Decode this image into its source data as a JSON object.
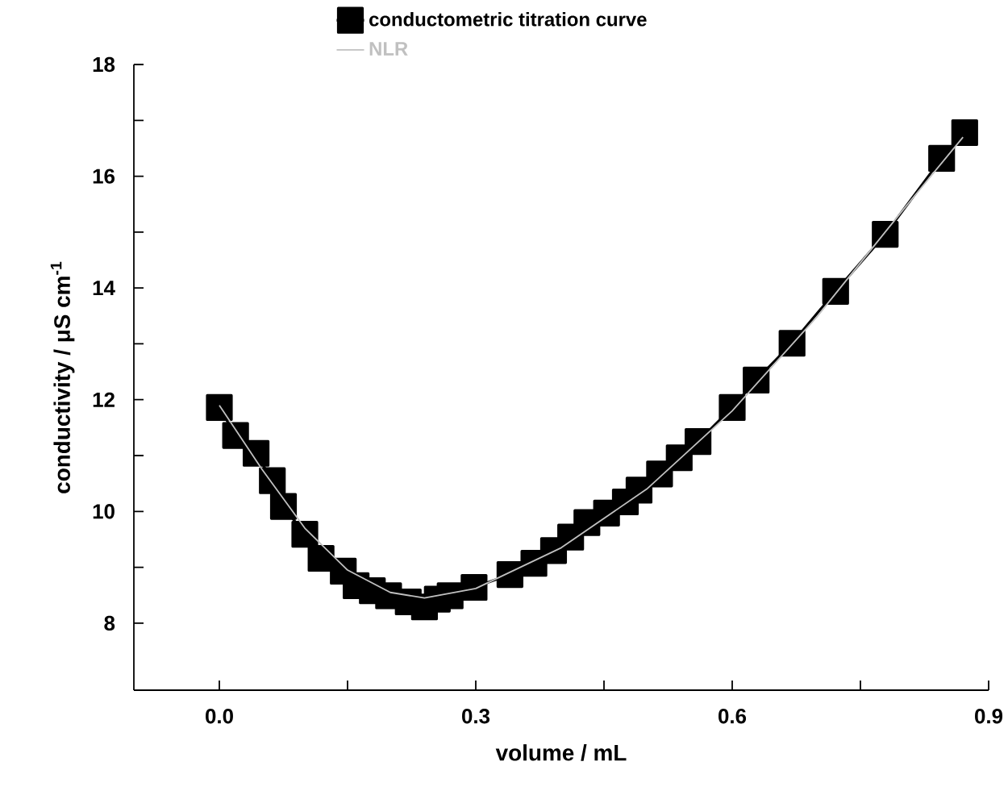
{
  "chart_data": {
    "type": "line",
    "xlabel": "volume / mL",
    "ylabel": "conductivity / μS cm$^{-1}$",
    "xlim": [
      -0.1,
      0.9
    ],
    "ylim": [
      6.8,
      18
    ],
    "xticks": [
      {
        "value": 0,
        "label": "0.0"
      },
      {
        "value": 0.15,
        "label": null
      },
      {
        "value": 0.3,
        "label": "0.3"
      },
      {
        "value": 0.45,
        "label": null
      },
      {
        "value": 0.6,
        "label": "0.6"
      },
      {
        "value": 0.75,
        "label": null
      },
      {
        "value": 0.9,
        "label": "0.9"
      }
    ],
    "yticks": [
      8,
      {
        "value": 9,
        "label": null
      },
      10,
      {
        "value": 11,
        "label": null
      },
      12,
      {
        "value": 13,
        "label": null
      },
      14,
      {
        "value": 15,
        "label": null
      },
      16,
      {
        "value": 17,
        "label": null
      },
      18
    ],
    "legend": "top",
    "series": [
      {
        "name": "conductometric titration curve",
        "color": "#000000",
        "marker": "square",
        "x": [
          0.0,
          0.019,
          0.043,
          0.062,
          0.075,
          0.1,
          0.119,
          0.145,
          0.16,
          0.179,
          0.198,
          0.221,
          0.24,
          0.255,
          0.27,
          0.298,
          0.34,
          0.368,
          0.391,
          0.411,
          0.43,
          0.453,
          0.475,
          0.491,
          0.515,
          0.538,
          0.56,
          0.6,
          0.628,
          0.67,
          0.721,
          0.779,
          0.845,
          0.872
        ],
        "values": [
          11.86,
          11.36,
          11.04,
          10.55,
          10.09,
          9.59,
          9.16,
          8.93,
          8.67,
          8.58,
          8.49,
          8.38,
          8.29,
          8.43,
          8.49,
          8.64,
          8.87,
          9.07,
          9.3,
          9.54,
          9.8,
          9.97,
          10.17,
          10.38,
          10.67,
          10.96,
          11.25,
          11.86,
          12.35,
          13.01,
          13.94,
          14.96,
          16.32,
          16.78
        ]
      },
      {
        "name": "NLR",
        "color": "#c0c0c0",
        "marker": "none",
        "x": [
          0.0,
          0.05,
          0.1,
          0.15,
          0.2,
          0.24,
          0.3,
          0.4,
          0.5,
          0.6,
          0.7,
          0.8,
          0.87
        ],
        "values": [
          11.9,
          10.75,
          9.7,
          8.95,
          8.55,
          8.45,
          8.62,
          9.35,
          10.4,
          11.8,
          13.5,
          15.4,
          16.7
        ]
      }
    ]
  }
}
